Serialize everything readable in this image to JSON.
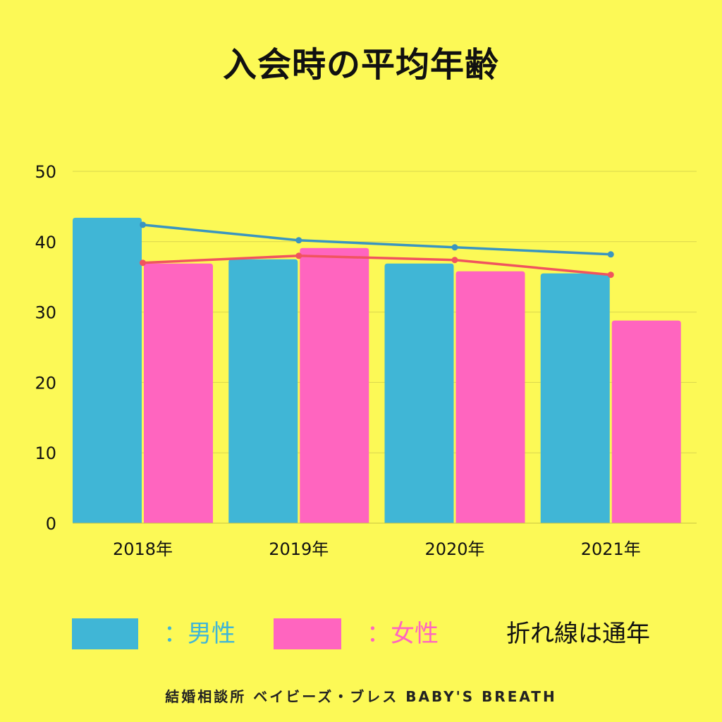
{
  "title": "入会時の平均年齢",
  "chart_data": {
    "type": "bar",
    "categories": [
      "2018年",
      "2019年",
      "2020年",
      "2021年"
    ],
    "series": [
      {
        "name": "男性",
        "type": "bar",
        "color": "#40b6d6",
        "values": [
          43.4,
          37.5,
          36.9,
          35.5
        ]
      },
      {
        "name": "女性",
        "type": "bar",
        "color": "#ff65bf",
        "values": [
          36.9,
          39.1,
          35.8,
          28.8
        ]
      },
      {
        "type": "line",
        "color": "#3a95c0",
        "values": [
          42.4,
          40.2,
          39.2,
          38.2
        ]
      },
      {
        "type": "line",
        "color": "#f0545e",
        "values": [
          37.0,
          38.0,
          37.4,
          35.3
        ]
      }
    ],
    "yticks": [
      0,
      10,
      20,
      30,
      40,
      50
    ],
    "ylim": [
      0,
      50
    ],
    "grid": true
  },
  "legend": {
    "male_label": "：男性",
    "female_label": "：女性",
    "note": "折れ線は通年",
    "male_color": "#40b6d6",
    "female_color": "#ff65bf"
  },
  "footer": "結婚相談所 ベイビーズ・ブレス BABY'S BREATH"
}
